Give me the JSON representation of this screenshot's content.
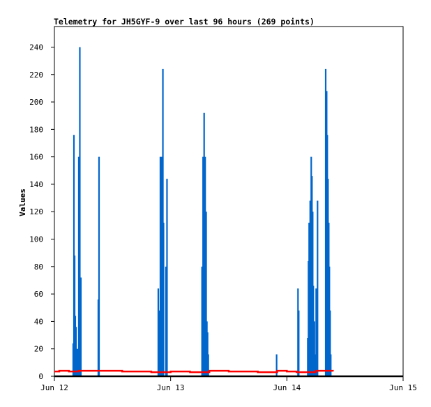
{
  "chart_data": {
    "type": "bar",
    "title": "Telemetry for JH5GYF-9 over last 96 hours (269 points)",
    "xlabel": "",
    "ylabel": "Values",
    "xlim": [
      "Jun 12 00:00",
      "Jun 15 00:00"
    ],
    "ylim": [
      0,
      255
    ],
    "x_ticks": [
      "Jun 12",
      "Jun 13",
      "Jun 14",
      "Jun 15"
    ],
    "y_ticks": [
      0,
      20,
      40,
      60,
      80,
      100,
      120,
      140,
      160,
      180,
      200,
      220,
      240
    ],
    "grid": false,
    "colors": {
      "spikes": "#0066cc",
      "baseline": "#ff0000",
      "zero": "#000000"
    },
    "series": [
      {
        "style": "impulse",
        "color": "#0066cc",
        "points": [
          [
            "Jun 12 03:53",
            24
          ],
          [
            "Jun 12 04:02",
            176
          ],
          [
            "Jun 12 04:11",
            88
          ],
          [
            "Jun 12 04:19",
            44
          ],
          [
            "Jun 12 04:28",
            36
          ],
          [
            "Jun 12 04:36",
            20
          ],
          [
            "Jun 12 04:54",
            20
          ],
          [
            "Jun 12 05:02",
            160
          ],
          [
            "Jun 12 05:15",
            240
          ],
          [
            "Jun 12 05:28",
            72
          ],
          [
            "Jun 12 09:04",
            56
          ],
          [
            "Jun 12 09:13",
            160
          ],
          [
            "Jun 12 21:27",
            64
          ],
          [
            "Jun 12 21:36",
            48
          ],
          [
            "Jun 12 21:45",
            16
          ],
          [
            "Jun 12 21:53",
            160
          ],
          [
            "Jun 12 22:11",
            160
          ],
          [
            "Jun 12 22:24",
            224
          ],
          [
            "Jun 12 22:32",
            112
          ],
          [
            "Jun 12 23:02",
            80
          ],
          [
            "Jun 12 23:15",
            144
          ],
          [
            "Jun 13 06:29",
            80
          ],
          [
            "Jun 13 06:42",
            160
          ],
          [
            "Jun 13 06:55",
            192
          ],
          [
            "Jun 13 07:08",
            160
          ],
          [
            "Jun 13 07:20",
            120
          ],
          [
            "Jun 13 07:29",
            40
          ],
          [
            "Jun 13 07:38",
            32
          ],
          [
            "Jun 13 07:47",
            16
          ],
          [
            "Jun 13 21:53",
            16
          ],
          [
            "Jun 14 02:18",
            64
          ],
          [
            "Jun 14 02:27",
            48
          ],
          [
            "Jun 14 04:19",
            28
          ],
          [
            "Jun 14 04:28",
            84
          ],
          [
            "Jun 14 04:36",
            112
          ],
          [
            "Jun 14 04:49",
            128
          ],
          [
            "Jun 14 05:02",
            160
          ],
          [
            "Jun 14 05:11",
            146
          ],
          [
            "Jun 14 05:20",
            120
          ],
          [
            "Jun 14 05:28",
            66
          ],
          [
            "Jun 14 05:41",
            40
          ],
          [
            "Jun 14 05:54",
            16
          ],
          [
            "Jun 14 06:03",
            64
          ],
          [
            "Jun 14 06:20",
            128
          ],
          [
            "Jun 14 08:01",
            224
          ],
          [
            "Jun 14 08:13",
            208
          ],
          [
            "Jun 14 08:21",
            176
          ],
          [
            "Jun 14 08:30",
            144
          ],
          [
            "Jun 14 08:39",
            112
          ],
          [
            "Jun 14 08:47",
            80
          ],
          [
            "Jun 14 08:56",
            48
          ],
          [
            "Jun 14 09:04",
            16
          ]
        ]
      },
      {
        "style": "line",
        "color": "#ff0000",
        "points": [
          [
            "Jun 12 00:00",
            3.5
          ],
          [
            "Jun 12 01:00",
            4
          ],
          [
            "Jun 12 03:00",
            3.5
          ],
          [
            "Jun 12 05:00",
            4
          ],
          [
            "Jun 12 12:00",
            4
          ],
          [
            "Jun 12 14:00",
            3.5
          ],
          [
            "Jun 12 18:00",
            3.5
          ],
          [
            "Jun 12 20:00",
            3
          ],
          [
            "Jun 13 00:00",
            3.5
          ],
          [
            "Jun 13 04:00",
            3
          ],
          [
            "Jun 13 08:00",
            4
          ],
          [
            "Jun 13 12:00",
            3.5
          ],
          [
            "Jun 13 18:00",
            3
          ],
          [
            "Jun 13 22:00",
            4
          ],
          [
            "Jun 14 00:00",
            3.5
          ],
          [
            "Jun 14 02:00",
            3
          ],
          [
            "Jun 14 06:00",
            4
          ],
          [
            "Jun 14 09:30",
            3.5
          ]
        ]
      },
      {
        "style": "line",
        "color": "#000000",
        "points": [
          [
            "Jun 12 00:00",
            0
          ],
          [
            "Jun 15 00:00",
            0
          ]
        ]
      }
    ]
  }
}
